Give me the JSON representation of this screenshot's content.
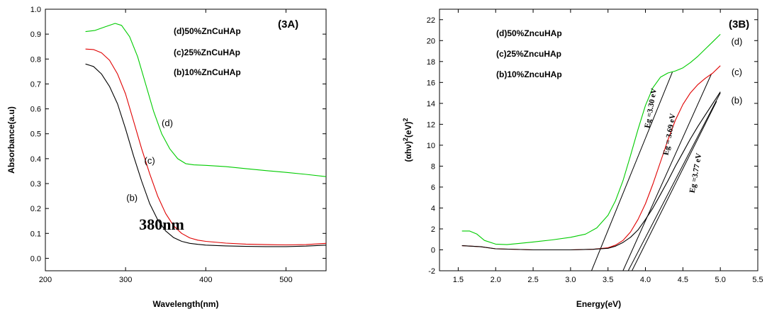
{
  "chart_data": [
    {
      "type": "line",
      "panel_label": "(3A)",
      "xlabel": "Wavelength(nm)",
      "ylabel": "Absorbance(a.u)",
      "xlim": [
        200,
        550
      ],
      "ylim": [
        -0.05,
        1.0
      ],
      "x_ticks": [
        200,
        300,
        400,
        500
      ],
      "y_ticks": [
        0.0,
        0.1,
        0.2,
        0.3,
        0.4,
        0.5,
        0.6,
        0.7,
        0.8,
        0.9,
        1.0
      ],
      "legend": [
        "(d)50%ZnCuHAp",
        "(c)25%ZnCuHAp",
        "(b)10%ZnCuHAp"
      ],
      "legend_position": "top-right",
      "annotation": "380nm",
      "series": [
        {
          "name": "(d)",
          "color": "#00cc00",
          "x": [
            250,
            262,
            275,
            287,
            295,
            305,
            315,
            325,
            335,
            345,
            355,
            365,
            375,
            385,
            400,
            425,
            450,
            475,
            500,
            525,
            550
          ],
          "y": [
            0.91,
            0.915,
            0.93,
            0.943,
            0.935,
            0.89,
            0.81,
            0.7,
            0.59,
            0.5,
            0.44,
            0.4,
            0.38,
            0.375,
            0.373,
            0.368,
            0.36,
            0.352,
            0.345,
            0.337,
            0.328
          ]
        },
        {
          "name": "(c)",
          "color": "#e00000",
          "x": [
            250,
            260,
            270,
            280,
            290,
            300,
            310,
            320,
            330,
            340,
            350,
            360,
            370,
            380,
            390,
            400,
            425,
            450,
            475,
            500,
            525,
            550
          ],
          "y": [
            0.84,
            0.838,
            0.825,
            0.795,
            0.74,
            0.66,
            0.55,
            0.44,
            0.34,
            0.25,
            0.18,
            0.13,
            0.1,
            0.082,
            0.073,
            0.068,
            0.061,
            0.057,
            0.055,
            0.054,
            0.055,
            0.06
          ]
        },
        {
          "name": "(b)",
          "color": "#000000",
          "x": [
            250,
            260,
            270,
            280,
            290,
            300,
            310,
            320,
            330,
            340,
            350,
            360,
            370,
            380,
            390,
            400,
            425,
            450,
            475,
            500,
            525,
            550
          ],
          "y": [
            0.78,
            0.77,
            0.74,
            0.69,
            0.62,
            0.52,
            0.41,
            0.31,
            0.22,
            0.155,
            0.11,
            0.083,
            0.068,
            0.06,
            0.056,
            0.053,
            0.05,
            0.048,
            0.047,
            0.047,
            0.049,
            0.053
          ]
        }
      ],
      "curve_labels": [
        {
          "text": "(d)",
          "x": 352,
          "y": 0.53
        },
        {
          "text": "(c)",
          "x": 330,
          "y": 0.38
        },
        {
          "text": "(b)",
          "x": 308,
          "y": 0.23
        }
      ],
      "annotation_pos": {
        "x": 345,
        "y": 0.115
      }
    },
    {
      "type": "line",
      "panel_label": "(3B)",
      "xlabel": "Energy(eV)",
      "ylabel": "(αhν)²(eV)²",
      "ylabel_base": "(αhν)",
      "ylabel_mid": "(eV)",
      "ylabel_sup": "2",
      "xlim": [
        1.25,
        5.5
      ],
      "ylim": [
        -2,
        23
      ],
      "x_ticks": [
        1.5,
        2.0,
        2.5,
        3.0,
        3.5,
        4.0,
        4.5,
        5.0,
        5.5
      ],
      "y_ticks": [
        -2,
        0,
        2,
        4,
        6,
        8,
        10,
        12,
        14,
        16,
        18,
        20,
        22
      ],
      "legend": [
        "(d)50%ZncuHAp",
        "(c)25%ZncuHAp",
        "(b)10%ZncuHAp"
      ],
      "legend_position": "top-right",
      "series": [
        {
          "name": "(d)",
          "color": "#00cc00",
          "x": [
            1.55,
            1.65,
            1.75,
            1.85,
            2.0,
            2.15,
            2.3,
            2.5,
            2.75,
            3.0,
            3.2,
            3.35,
            3.5,
            3.6,
            3.7,
            3.8,
            3.9,
            4.0,
            4.1,
            4.2,
            4.3,
            4.4,
            4.5,
            4.6,
            4.7,
            4.8,
            4.9,
            5.0
          ],
          "y": [
            1.8,
            1.8,
            1.5,
            0.9,
            0.55,
            0.5,
            0.6,
            0.75,
            0.95,
            1.2,
            1.5,
            2.1,
            3.3,
            4.7,
            6.6,
            9.0,
            11.5,
            13.8,
            15.5,
            16.5,
            16.9,
            17.1,
            17.4,
            17.9,
            18.5,
            19.2,
            19.9,
            20.6
          ]
        },
        {
          "name": "(c)",
          "color": "#e00000",
          "x": [
            1.55,
            1.8,
            2.0,
            2.5,
            3.0,
            3.3,
            3.5,
            3.6,
            3.7,
            3.8,
            3.9,
            4.0,
            4.1,
            4.2,
            4.3,
            4.4,
            4.5,
            4.6,
            4.7,
            4.8,
            4.9,
            5.0
          ],
          "y": [
            0.4,
            0.3,
            0.1,
            0.0,
            0.0,
            0.05,
            0.2,
            0.45,
            0.9,
            1.7,
            2.9,
            4.4,
            6.3,
            8.4,
            10.5,
            12.4,
            13.9,
            15.0,
            15.8,
            16.4,
            16.9,
            17.6
          ]
        },
        {
          "name": "(b)",
          "color": "#000000",
          "x": [
            1.55,
            1.8,
            2.0,
            2.5,
            3.0,
            3.3,
            3.5,
            3.6,
            3.7,
            3.8,
            3.9,
            4.0,
            4.1,
            4.2,
            4.3,
            4.4,
            4.5,
            4.6,
            4.7,
            4.8,
            4.9,
            5.0
          ],
          "y": [
            0.4,
            0.3,
            0.1,
            0.0,
            0.0,
            0.05,
            0.15,
            0.35,
            0.7,
            1.2,
            1.9,
            2.9,
            4.0,
            5.3,
            6.6,
            8.0,
            9.3,
            10.6,
            11.8,
            12.9,
            14.0,
            15.1
          ]
        }
      ],
      "tangent_lines": [
        {
          "x": [
            3.28,
            4.36
          ],
          "y": [
            -2.0,
            17.0
          ]
        },
        {
          "x": [
            3.7,
            4.88
          ],
          "y": [
            -2.0,
            16.8
          ]
        },
        {
          "x": [
            3.77,
            5.0
          ],
          "y": [
            -2.0,
            15.0
          ]
        },
        {
          "x": [
            3.82,
            4.95
          ],
          "y": [
            -2.0,
            14.2
          ]
        }
      ],
      "curve_labels": [
        {
          "text": "(d)",
          "x": 5.22,
          "y": 19.6
        },
        {
          "text": "(c)",
          "x": 5.22,
          "y": 16.7
        },
        {
          "text": "(b)",
          "x": 5.22,
          "y": 14.0
        }
      ],
      "eg_labels": [
        {
          "text": "Eg =3.30 eV",
          "x": 4.1,
          "y": 13.5
        },
        {
          "text": "Eg = 3.69 eV",
          "x": 4.35,
          "y": 11.0
        },
        {
          "text": "Eg =3.77 eV",
          "x": 4.7,
          "y": 7.3
        }
      ]
    }
  ]
}
